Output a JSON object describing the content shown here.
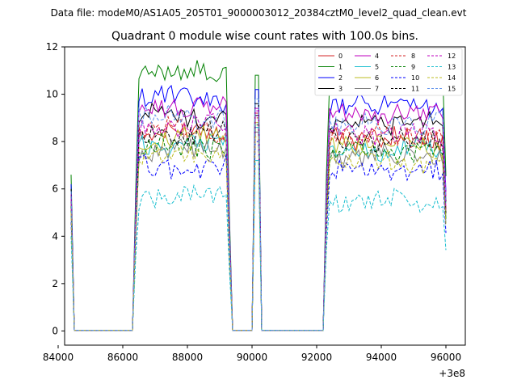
{
  "chart_data": {
    "type": "line",
    "supertitle": "Data file: modeM0/AS1A05_205T01_9000003012_20384cztM0_level2_quad_clean.evt",
    "title": "Quadrant 0 module wise count rates with 100.0s bins.",
    "xlabel": "",
    "ylabel": "",
    "x_offset_label": "+3e8",
    "xlim": [
      84200,
      96600
    ],
    "ylim": [
      -0.6,
      12
    ],
    "x_ticks": [
      84000,
      86000,
      88000,
      90000,
      92000,
      94000,
      96000
    ],
    "x_tick_labels": [
      "84000",
      "86000",
      "88000",
      "90000",
      "92000",
      "94000",
      "96000"
    ],
    "y_ticks": [
      0,
      2,
      4,
      6,
      8,
      10,
      12
    ],
    "y_tick_labels": [
      "0",
      "2",
      "4",
      "6",
      "8",
      "10",
      "12"
    ],
    "grid": false,
    "legend_location": "top-right",
    "segments": [
      {
        "start": 84400,
        "end": 84500
      },
      {
        "start": 86400,
        "end": 89300
      },
      {
        "start": 90100,
        "end": 90200
      },
      {
        "start": 92300,
        "end": 96000
      }
    ],
    "gap_value": 0.03,
    "series": [
      {
        "name": "0",
        "color": "#d62728",
        "dash": "solid",
        "start": 5.6,
        "level": 8.4,
        "spike": 9.2
      },
      {
        "name": "1",
        "color": "#008000",
        "dash": "solid",
        "start": 6.6,
        "level": 10.9,
        "spike": 10.8
      },
      {
        "name": "2",
        "color": "#0000ff",
        "dash": "solid",
        "start": 6.2,
        "level": 9.8,
        "spike": 10.2
      },
      {
        "name": "3",
        "color": "#000000",
        "dash": "solid",
        "start": 6.0,
        "level": 9.1,
        "spike": 9.6
      },
      {
        "name": "4",
        "color": "#bf00bf",
        "dash": "solid",
        "start": 5.8,
        "level": 9.5,
        "spike": 9.4
      },
      {
        "name": "5",
        "color": "#17becf",
        "dash": "solid",
        "start": 5.2,
        "level": 7.9,
        "spike": 8.6
      },
      {
        "name": "6",
        "color": "#bcbd22",
        "dash": "solid",
        "start": 5.4,
        "level": 8.1,
        "spike": 8.8
      },
      {
        "name": "7",
        "color": "#7f7f7f",
        "dash": "solid",
        "start": 5.1,
        "level": 7.6,
        "spike": 8.4
      },
      {
        "name": "8",
        "color": "#d62728",
        "dash": "dashed",
        "start": 5.5,
        "level": 8.5,
        "spike": 9.0
      },
      {
        "name": "9",
        "color": "#008000",
        "dash": "dashed",
        "start": 5.3,
        "level": 7.8,
        "spike": 8.7
      },
      {
        "name": "10",
        "color": "#0000ff",
        "dash": "dashed",
        "start": 4.6,
        "level": 6.9,
        "spike": 8.0
      },
      {
        "name": "11",
        "color": "#000000",
        "dash": "dashed",
        "start": 5.7,
        "level": 8.3,
        "spike": 9.1
      },
      {
        "name": "12",
        "color": "#bf00bf",
        "dash": "dashed",
        "start": 5.6,
        "level": 8.6,
        "spike": 9.3
      },
      {
        "name": "13",
        "color": "#17becf",
        "dash": "dashed",
        "start": 4.0,
        "level": 5.7,
        "spike": 7.2
      },
      {
        "name": "14",
        "color": "#bcbd22",
        "dash": "dashed",
        "start": 5.0,
        "level": 7.4,
        "spike": 8.2
      },
      {
        "name": "15",
        "color": "#6495ed",
        "dash": "dashed",
        "start": 5.9,
        "level": 9.0,
        "spike": 9.8
      }
    ]
  }
}
